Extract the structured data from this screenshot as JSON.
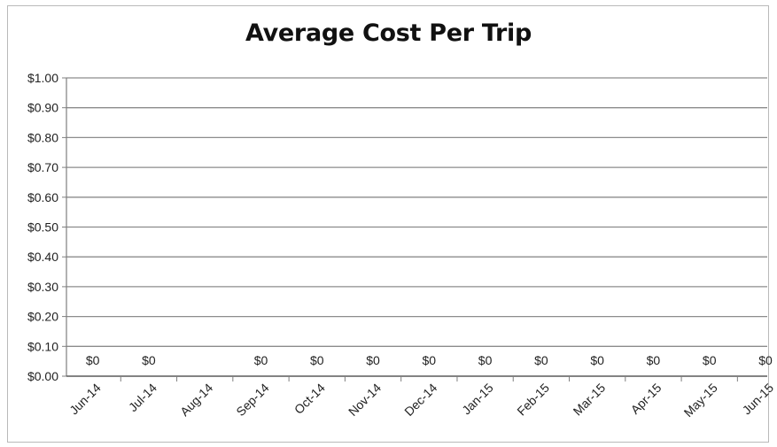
{
  "chart_data": {
    "type": "line",
    "title": "Average Cost Per Trip",
    "xlabel": "",
    "ylabel": "",
    "categories": [
      "Jun-14",
      "Jul-14",
      "Aug-14",
      "Sep-14",
      "Oct-14",
      "Nov-14",
      "Dec-14",
      "Jan-15",
      "Feb-15",
      "Mar-15",
      "Apr-15",
      "May-15",
      "Jun-15"
    ],
    "series": [
      {
        "values": [
          0,
          0,
          null,
          0,
          0,
          0,
          0,
          0,
          0,
          0,
          0,
          0,
          0
        ],
        "data_labels": [
          "$0",
          "$0",
          null,
          "$0",
          "$0",
          "$0",
          "$0",
          "$0",
          "$0",
          "$0",
          "$0",
          "$0",
          "$0"
        ]
      }
    ],
    "ylim": [
      0,
      1.0
    ],
    "yticks": [
      0,
      0.1,
      0.2,
      0.3,
      0.4,
      0.5,
      0.6,
      0.7,
      0.8,
      0.9,
      1.0
    ],
    "ytick_labels": [
      "$0.00",
      "$0.10",
      "$0.20",
      "$0.30",
      "$0.40",
      "$0.50",
      "$0.60",
      "$0.70",
      "$0.80",
      "$0.90",
      "$1.00"
    ],
    "grid": true,
    "legend": "none",
    "colors": {
      "gridline": "#8c8c8c",
      "axis": "#7f7f7f",
      "text": "#222222"
    }
  }
}
